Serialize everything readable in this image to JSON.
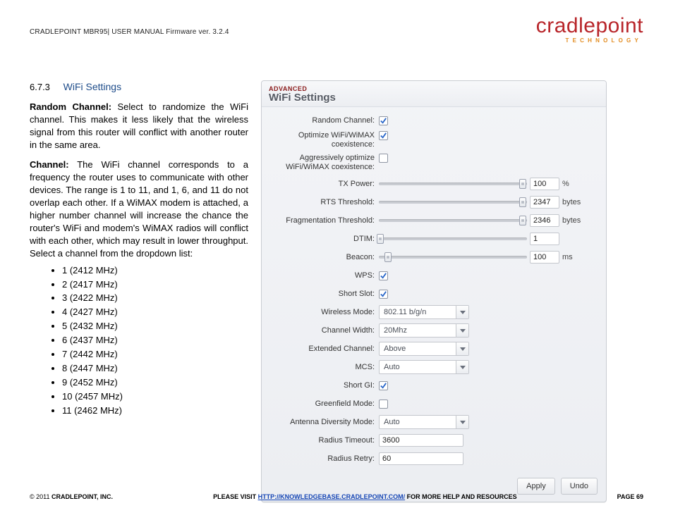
{
  "header": {
    "left": "CRADLEPOINT MBR95| USER MANUAL Firmware ver. 3.2.4",
    "logo_word": "cradlepoint",
    "logo_sub": "TECHNOLOGY"
  },
  "doc": {
    "sec_num": "6.7.3",
    "sec_title": "WiFi Settings",
    "p1_lead": "Random Channel:",
    "p1_body": " Select to randomize the WiFi channel. This makes it less likely that the wireless signal from this router will conflict with another router in the same area.",
    "p2_lead": "Channel:",
    "p2_body": " The WiFi channel corresponds to a frequency the router uses to communicate with other devices. The range is 1 to 11, and 1, 6, and 11 do not overlap each other. If a WiMAX modem is attached, a higher number channel will increase the chance the router's WiFi and modem's WiMAX radios will conflict with each other, which may result in lower throughput. Select a channel from the dropdown list:",
    "channels": [
      "1 (2412 MHz)",
      "2 (2417 MHz)",
      "3 (2422 MHz)",
      "4 (2427 MHz)",
      "5 (2432 MHz)",
      "6 (2437 MHz)",
      "7 (2442 MHz)",
      "8 (2447 MHz)",
      "9 (2452 MHz)",
      "10 (2457 MHz)",
      "11 (2462 MHz)"
    ]
  },
  "panel": {
    "advanced": "ADVANCED",
    "title": "WiFi Settings",
    "labels": {
      "random_channel": "Random Channel:",
      "optimize": "Optimize WiFi/WiMAX coexistence:",
      "aggressive": "Aggressively optimize WiFi/WiMAX coexistence:",
      "tx_power": "TX Power:",
      "rts": "RTS Threshold:",
      "frag": "Fragmentation Threshold:",
      "dtim": "DTIM:",
      "beacon": "Beacon:",
      "wps": "WPS:",
      "short_slot": "Short Slot:",
      "wireless_mode": "Wireless Mode:",
      "channel_width": "Channel Width:",
      "ext_channel": "Extended Channel:",
      "mcs": "MCS:",
      "short_gi": "Short GI:",
      "greenfield": "Greenfield Mode:",
      "ant_div": "Antenna Diversity Mode:",
      "radius_timeout": "Radius Timeout:",
      "radius_retry": "Radius Retry:"
    },
    "checks": {
      "random_channel": true,
      "optimize": true,
      "aggressive": false,
      "wps": true,
      "short_slot": true,
      "short_gi": true,
      "greenfield": false
    },
    "sliders": {
      "tx_power": {
        "pos_pct": 97,
        "value": "100",
        "unit": "%"
      },
      "rts": {
        "pos_pct": 97,
        "value": "2347",
        "unit": "bytes"
      },
      "frag": {
        "pos_pct": 97,
        "value": "2346",
        "unit": "bytes"
      },
      "dtim": {
        "pos_pct": 1,
        "value": "1",
        "unit": ""
      },
      "beacon": {
        "pos_pct": 6,
        "value": "100",
        "unit": "ms"
      }
    },
    "selects": {
      "wireless_mode": "802.11 b/g/n",
      "channel_width": "20Mhz",
      "ext_channel": "Above",
      "mcs": "Auto",
      "ant_div": "Auto"
    },
    "fields": {
      "radius_timeout": "3600",
      "radius_retry": "60"
    },
    "buttons": {
      "apply": "Apply",
      "undo": "Undo"
    }
  },
  "footer": {
    "left_pre": "© 2011 ",
    "left_bold": "CRADLEPOINT, INC.",
    "mid_pre": "PLEASE VISIT ",
    "mid_link": "HTTP://KNOWLEDGEBASE.CRADLEPOINT.COM/",
    "mid_post": " FOR MORE HELP AND RESOURCES",
    "right": "PAGE 69"
  },
  "colors": {
    "brand_red": "#b8252a",
    "brand_orange": "#e28b1e",
    "heading_blue": "#1e4c8a",
    "panel_bg": "#eceef2",
    "panel_border": "#c9ccd2",
    "slider_track": "#c9ccd2",
    "check_mark": "#2a67c9"
  }
}
